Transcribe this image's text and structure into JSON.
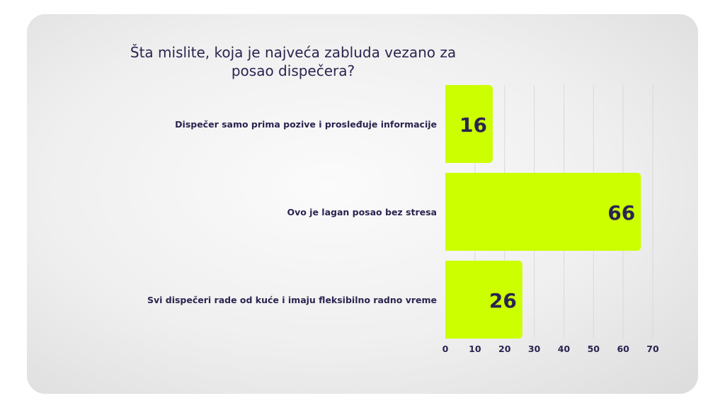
{
  "chart_data": {
    "type": "bar",
    "orientation": "horizontal",
    "title_lines": [
      "Šta mislite, koja je najveća zabluda vezano za",
      "posao dispečera?"
    ],
    "categories": [
      "Dispečer samo prima pozive i prosleđuje informacije",
      "Ovo je lagan posao bez stresa",
      "Svi dispečeri rade od kuće i imaju fleksibilno radno vreme"
    ],
    "values": [
      16,
      66,
      26
    ],
    "data_labels": [
      "16",
      "66",
      "26"
    ],
    "xlim": [
      0,
      70
    ],
    "x_ticks": [
      0,
      10,
      20,
      30,
      40,
      50,
      60,
      70
    ],
    "x_tick_labels": [
      "0",
      "10",
      "20",
      "30",
      "40",
      "50",
      "60",
      "70"
    ],
    "grid": true,
    "legend": "none",
    "colors": {
      "bar": "#ccff00",
      "text": "#2b2450",
      "grid": "#d9d9d9"
    }
  }
}
